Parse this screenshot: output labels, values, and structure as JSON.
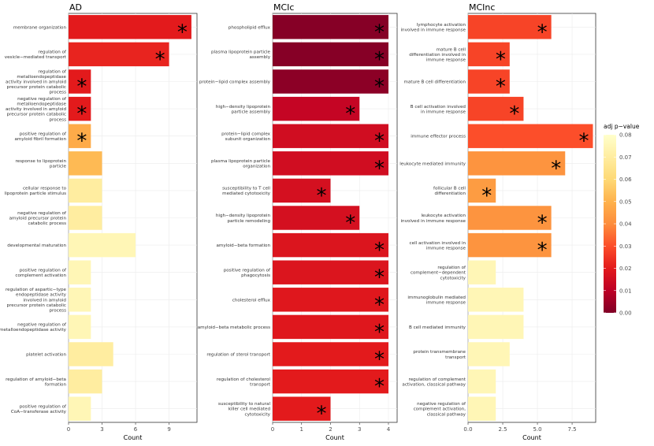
{
  "chart_data": [
    {
      "type": "bar",
      "orientation": "horizontal",
      "title": "AD",
      "xlabel": "Count",
      "ylabel": "",
      "xlim": [
        0,
        11.5
      ],
      "xticks": [
        0,
        3,
        6,
        9
      ],
      "grid": true,
      "categories": [
        "membrane organization",
        "regulation of\nvesicle−mediated transport",
        "regulation of\nmetalloendopeptidase\nactivity involved in amyloid\nprecursor protein catabolic\nprocess",
        "negative regulation of\nmetalloendopeptidase\nactivity involved in amyloid\nprecursor protein catabolic\nprocess",
        "positive regulation of\namyloid fibril formation",
        "response to lipoprotein\nparticle",
        "cellular response to\nlipoprotein particle stimulus",
        "negative regulation of\namyloid precursor protein\ncatabolic process",
        "developmental maturation",
        "positive regulation of\ncomplement activation",
        "regulation of aspartic−type\nendopeptidase activity\ninvolved in amyloid\nprecursor protein catabolic\nprocess",
        "negative regulation of\nmetalloendopeptidase activity",
        "platelet activation",
        "regulation of amyloid−beta\nformation",
        "positive regulation of\nCoA−transferase activity"
      ],
      "values": [
        11,
        9,
        2,
        2,
        2,
        3,
        3,
        3,
        6,
        2,
        2,
        2,
        4,
        3,
        2
      ],
      "adj_p": [
        0.02,
        0.022,
        0.02,
        0.02,
        0.048,
        0.052,
        0.07,
        0.07,
        0.075,
        0.075,
        0.075,
        0.075,
        0.07,
        0.07,
        0.075
      ],
      "significant": [
        true,
        true,
        true,
        true,
        true,
        false,
        false,
        false,
        false,
        false,
        false,
        false,
        false,
        false,
        false
      ],
      "marker": "*"
    },
    {
      "type": "bar",
      "orientation": "horizontal",
      "title": "MCIc",
      "xlabel": "Count",
      "ylabel": "",
      "xlim": [
        0,
        4.3
      ],
      "xticks": [
        0,
        1,
        2,
        3,
        4
      ],
      "grid": true,
      "categories": [
        "phospholipid efflux",
        "plasma lipoprotein particle\nassembly",
        "protein−lipid complex assembly",
        "high−density lipoprotein\nparticle assembly",
        "protein−lipid complex\nsubunit organization",
        "plasma lipoprotein particle\norganization",
        "susceptibility to T cell\nmediated cytotoxicity",
        "high−density lipoprotein\nparticle remodeling",
        "amyloid−beta formation",
        "positive regulation of\nphagocytosis",
        "cholesterol efflux",
        "amyloid−beta metabolic process",
        "regulation of sterol transport",
        "regulation of cholesterol\ntransport",
        "susceptibility to natural\nkiller cell mediated\ncytotoxicity"
      ],
      "values": [
        4,
        4,
        4,
        3,
        4,
        4,
        2,
        3,
        4,
        4,
        4,
        4,
        4,
        4,
        2
      ],
      "adj_p": [
        0.001,
        0.001,
        0.002,
        0.012,
        0.015,
        0.015,
        0.016,
        0.016,
        0.018,
        0.018,
        0.019,
        0.019,
        0.02,
        0.02,
        0.02
      ],
      "significant": [
        true,
        true,
        true,
        true,
        true,
        true,
        true,
        true,
        true,
        true,
        true,
        true,
        true,
        true,
        true
      ],
      "marker": "*"
    },
    {
      "type": "bar",
      "orientation": "horizontal",
      "title": "MCInc",
      "xlabel": "Count",
      "ylabel": "",
      "xlim": [
        0,
        9.2
      ],
      "xticks": [
        0,
        2.5,
        5,
        7.5
      ],
      "xtick_labels": [
        "0.0",
        "2.5",
        "5.0",
        "7.5"
      ],
      "grid": true,
      "categories": [
        "lymphocyte activation\ninvolved in immune response",
        "mature B cell\ndifferentiation involved in\nimmune response",
        "mature B cell differentiation",
        "B cell activation involved\nin immune response",
        "immune effector process",
        "leukocyte mediated immunity",
        "follicular B cell\ndifferentiation",
        "leukocyte activation\ninvolved in immune response",
        "cell activation involved in\nimmune response",
        "regulation of\ncomplement−dependent\ncytotoxicity",
        "immunoglobulin mediated\nimmune response",
        "B cell mediated immunity",
        "protein transmembrane\ntransport",
        "regulation of complement\nactivation, classical pathway",
        "negative regulation of\ncomplement activation,\nclassical pathway"
      ],
      "values": [
        6,
        3,
        3,
        4,
        9,
        7,
        2,
        6,
        6,
        2,
        4,
        4,
        3,
        2,
        2
      ],
      "adj_p": [
        0.028,
        0.028,
        0.028,
        0.028,
        0.03,
        0.042,
        0.044,
        0.042,
        0.042,
        0.075,
        0.075,
        0.075,
        0.075,
        0.075,
        0.075
      ],
      "significant": [
        true,
        true,
        true,
        true,
        true,
        true,
        true,
        true,
        true,
        false,
        false,
        false,
        false,
        false,
        false
      ],
      "marker": "*"
    }
  ],
  "legend": {
    "title": "adj p−value",
    "ticks": [
      "0.08",
      "0.07",
      "0.06",
      "0.05",
      "0.04",
      "0.03",
      "0.02",
      "0.01",
      "0.00"
    ],
    "tick_values": [
      0.08,
      0.07,
      0.06,
      0.05,
      0.04,
      0.03,
      0.02,
      0.01,
      0.0
    ],
    "range": [
      0,
      0.08
    ],
    "colors": [
      "#800026",
      "#bd0026",
      "#e31a1c",
      "#fc4e2a",
      "#fd8d3c",
      "#feb24c",
      "#fed976",
      "#ffeda0",
      "#ffffcc"
    ],
    "placement": "right"
  }
}
